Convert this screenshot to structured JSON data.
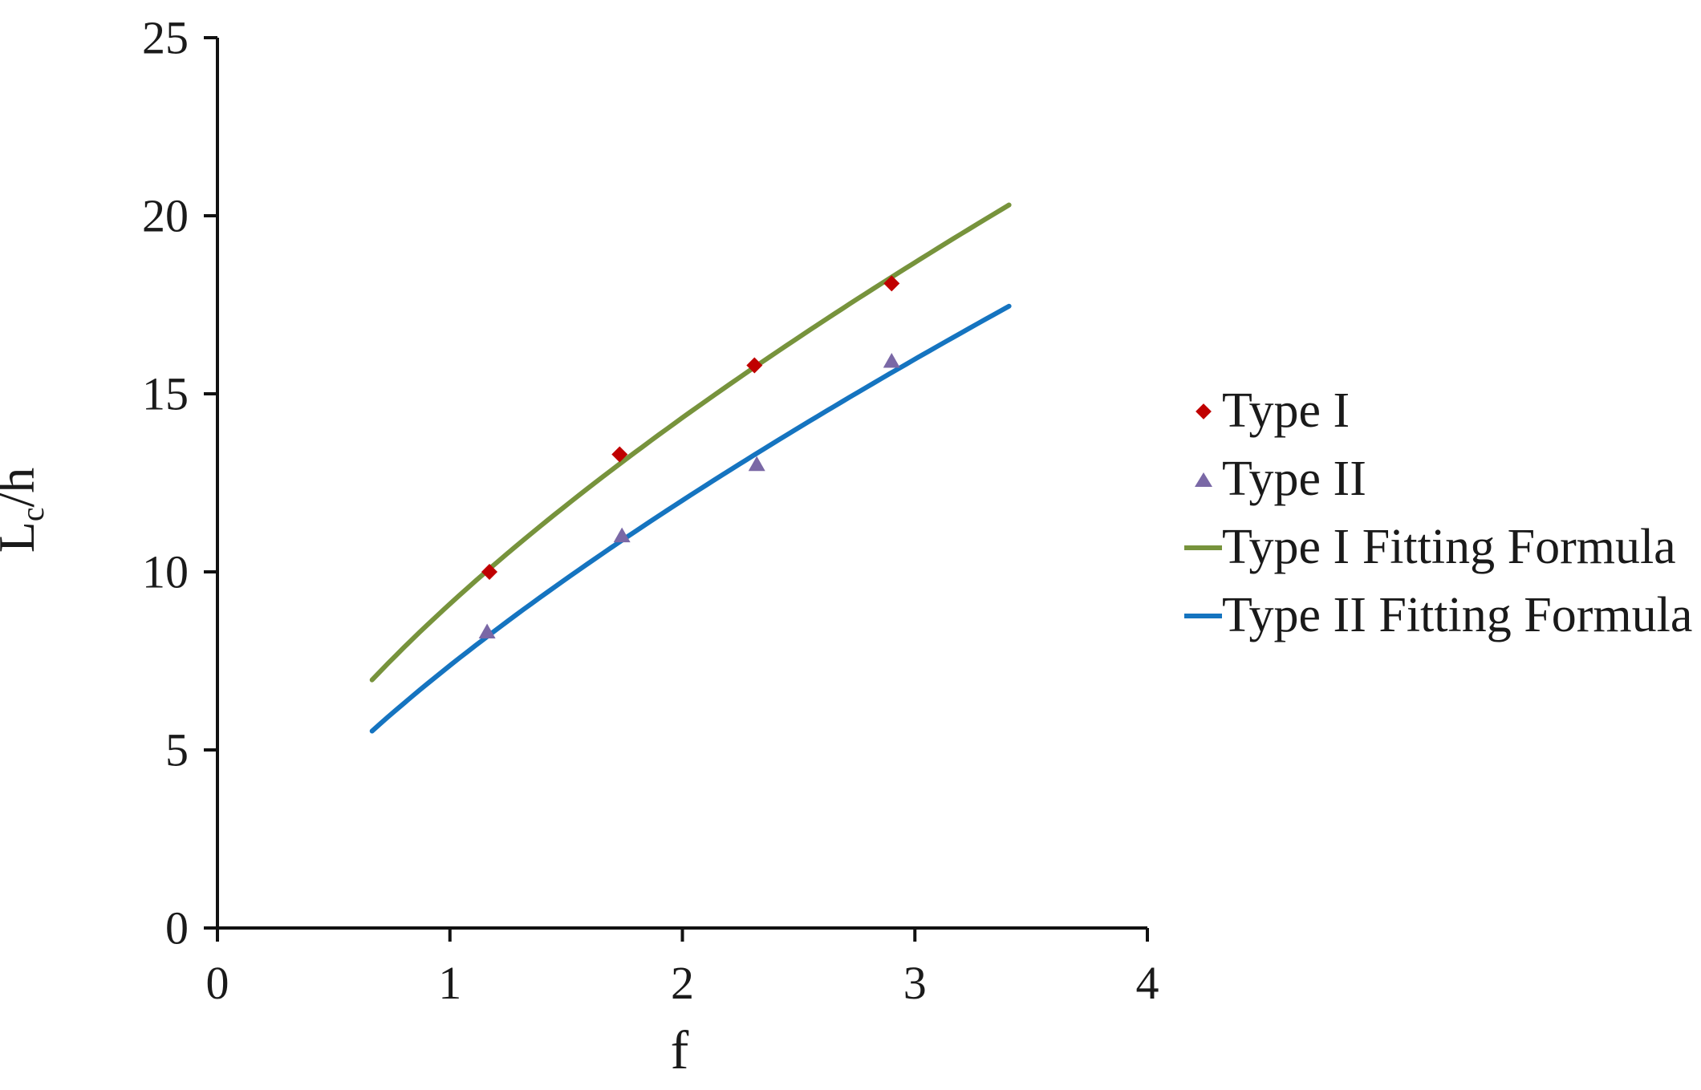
{
  "figure": {
    "background": "#ffffff",
    "axis_color": "#111111",
    "text_color": "#1a1a1a"
  },
  "chart_data": {
    "type": "scatter",
    "title": "",
    "xlabel": "f",
    "ylabel": "Lc/h",
    "ylabel_parts": {
      "main": "L",
      "sub": "c",
      "rest": "/h"
    },
    "xlim": [
      0,
      4
    ],
    "ylim": [
      0,
      25
    ],
    "x_ticks": [
      "0",
      "1",
      "2",
      "3",
      "4"
    ],
    "x_tick_values": [
      0,
      1,
      2,
      3,
      4
    ],
    "y_ticks": [
      "0",
      "5",
      "10",
      "15",
      "20",
      "25"
    ],
    "y_tick_values": [
      0,
      5,
      10,
      15,
      20,
      25
    ],
    "grid": false,
    "legend_position": "right",
    "series": [
      {
        "name": "Type I",
        "kind": "points",
        "marker": "diamond",
        "color": "#C00000",
        "points": [
          [
            1.17,
            10.0
          ],
          [
            1.73,
            13.3
          ],
          [
            2.31,
            15.8
          ],
          [
            2.9,
            18.1
          ]
        ]
      },
      {
        "name": "Type II",
        "kind": "points",
        "marker": "triangle",
        "color": "#7A68A6",
        "points": [
          [
            1.16,
            8.3
          ],
          [
            1.74,
            11.0
          ],
          [
            2.32,
            13.0
          ],
          [
            2.9,
            15.9
          ]
        ]
      },
      {
        "name": "Type I Fitting Formula",
        "kind": "curve",
        "color": "#77933C",
        "fit": {
          "form": "power",
          "a": 9.1,
          "b": 0.655
        },
        "domain": [
          0.665,
          3.405
        ]
      },
      {
        "name": "Type II Fitting Formula",
        "kind": "curve",
        "color": "#1574C0",
        "fit": {
          "form": "power",
          "a": 7.37,
          "b": 0.704
        },
        "domain": [
          0.665,
          3.405
        ]
      }
    ]
  }
}
